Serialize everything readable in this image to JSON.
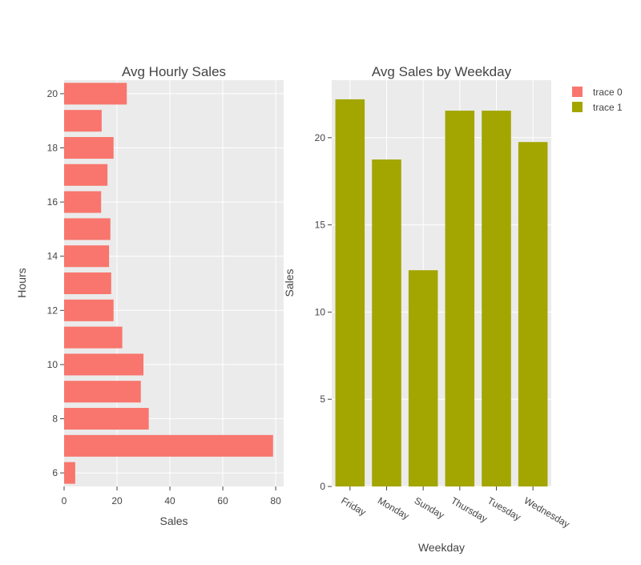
{
  "chart_data": [
    {
      "type": "bar",
      "orientation": "horizontal",
      "title": "Avg Hourly Sales",
      "xlabel": "Sales",
      "ylabel": "Hours",
      "xlim": [
        0,
        83
      ],
      "ylim": [
        5.5,
        20.5
      ],
      "x_ticks": [
        0,
        20,
        40,
        60,
        80
      ],
      "y_ticks": [
        6,
        8,
        10,
        12,
        14,
        16,
        18,
        20
      ],
      "series": [
        {
          "name": "trace 0",
          "color": "#f8766d",
          "points": [
            {
              "hour": 6,
              "value": 4.2
            },
            {
              "hour": 7,
              "value": 79.0
            },
            {
              "hour": 8,
              "value": 32.0
            },
            {
              "hour": 9,
              "value": 29.0
            },
            {
              "hour": 10,
              "value": 30.0
            },
            {
              "hour": 11,
              "value": 22.0
            },
            {
              "hour": 12,
              "value": 18.7
            },
            {
              "hour": 13,
              "value": 17.8
            },
            {
              "hour": 14,
              "value": 17.0
            },
            {
              "hour": 15,
              "value": 17.5
            },
            {
              "hour": 16,
              "value": 14.0
            },
            {
              "hour": 17,
              "value": 16.4
            },
            {
              "hour": 18,
              "value": 18.7
            },
            {
              "hour": 19,
              "value": 14.2
            },
            {
              "hour": 20,
              "value": 23.7
            }
          ]
        }
      ],
      "grid": true
    },
    {
      "type": "bar",
      "orientation": "vertical",
      "title": "Avg Sales by Weekday",
      "xlabel": "Weekday",
      "ylabel": "Sales",
      "ylim": [
        0,
        23.3
      ],
      "y_ticks": [
        0,
        5,
        10,
        15,
        20
      ],
      "categories": [
        "Friday",
        "Monday",
        "Sunday",
        "Thursday",
        "Tuesday",
        "Wednesday"
      ],
      "series": [
        {
          "name": "trace 1",
          "color": "#a3a500",
          "values": [
            22.2,
            18.75,
            12.4,
            21.55,
            21.55,
            19.75
          ]
        }
      ],
      "grid": true
    }
  ],
  "legend": {
    "placement": "top-right",
    "items": [
      {
        "label": "trace 0",
        "color": "#f8766d"
      },
      {
        "label": "trace 1",
        "color": "#a3a500"
      }
    ]
  }
}
